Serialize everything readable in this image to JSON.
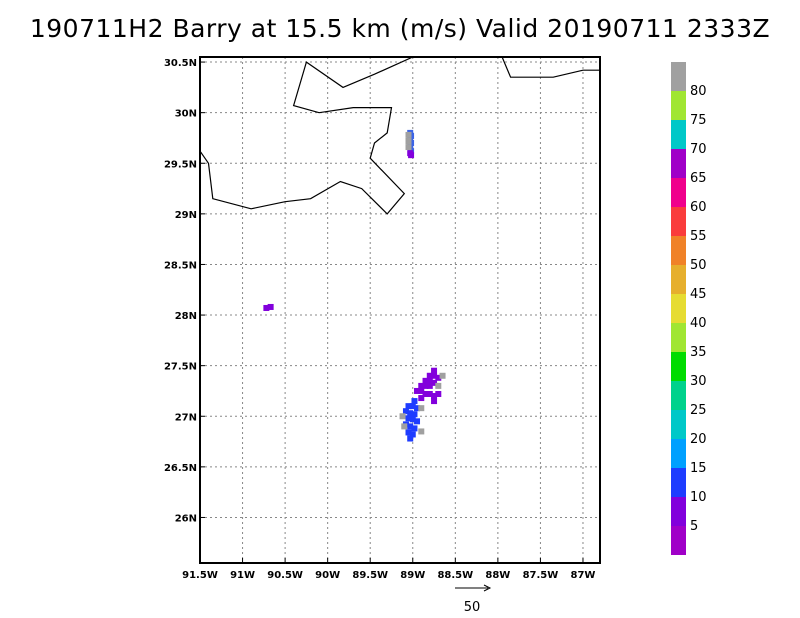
{
  "title": "190711H2 Barry at 15.5 km (m/s) Valid 20190711 2333Z",
  "map": {
    "lon_range": [
      -91.5,
      -86.8
    ],
    "lat_range": [
      25.55,
      30.55
    ],
    "lat_ticks": [
      {
        "value": 30.5,
        "label": "30.5N"
      },
      {
        "value": 30.0,
        "label": "30N"
      },
      {
        "value": 29.5,
        "label": "29.5N"
      },
      {
        "value": 29.0,
        "label": "29N"
      },
      {
        "value": 28.5,
        "label": "28.5N"
      },
      {
        "value": 28.0,
        "label": "28N"
      },
      {
        "value": 27.5,
        "label": "27.5N"
      },
      {
        "value": 27.0,
        "label": "27N"
      },
      {
        "value": 26.5,
        "label": "26.5N"
      },
      {
        "value": 26.0,
        "label": "26N"
      }
    ],
    "lon_ticks": [
      {
        "value": -91.5,
        "label": "91.5W"
      },
      {
        "value": -91.0,
        "label": "91W"
      },
      {
        "value": -90.5,
        "label": "90.5W"
      },
      {
        "value": -90.0,
        "label": "90W"
      },
      {
        "value": -89.5,
        "label": "89.5W"
      },
      {
        "value": -89.0,
        "label": "89W"
      },
      {
        "value": -88.5,
        "label": "88.5W"
      },
      {
        "value": -88.0,
        "label": "88W"
      },
      {
        "value": -87.5,
        "label": "87.5W"
      },
      {
        "value": -87.0,
        "label": "87W"
      }
    ],
    "coastlines": [
      [
        [
          -91.5,
          29.62
        ],
        [
          -91.4,
          29.5
        ],
        [
          -91.35,
          29.15
        ],
        [
          -90.9,
          29.05
        ],
        [
          -90.5,
          29.12
        ],
        [
          -90.2,
          29.15
        ],
        [
          -89.85,
          29.32
        ],
        [
          -89.6,
          29.25
        ],
        [
          -89.3,
          29.0
        ],
        [
          -89.1,
          29.2
        ],
        [
          -89.5,
          29.55
        ],
        [
          -89.45,
          29.7
        ],
        [
          -89.3,
          29.8
        ],
        [
          -89.25,
          30.05
        ],
        [
          -89.7,
          30.05
        ],
        [
          -90.1,
          30.0
        ],
        [
          -90.4,
          30.07
        ],
        [
          -90.25,
          30.5
        ],
        [
          -89.82,
          30.25
        ],
        [
          -89.45,
          30.38
        ],
        [
          -89.0,
          30.55
        ],
        [
          -88.5,
          30.55
        ],
        [
          -88.2,
          30.55
        ],
        [
          -88.05,
          30.55
        ]
      ],
      [
        [
          -87.95,
          30.55
        ],
        [
          -87.85,
          30.35
        ],
        [
          -87.35,
          30.35
        ],
        [
          -87.0,
          30.42
        ],
        [
          -86.8,
          30.42
        ]
      ]
    ],
    "colorbar": {
      "levels": [
        "80",
        "75",
        "70",
        "65",
        "60",
        "55",
        "50",
        "45",
        "40",
        "35",
        "30",
        "25",
        "20",
        "15",
        "10",
        "5"
      ],
      "colors": [
        "#a0a0a0",
        "#a0e632",
        "#00c8c8",
        "#a000c8",
        "#f0008c",
        "#fa3c3c",
        "#f08228",
        "#e6af2d",
        "#e6dc32",
        "#a0e632",
        "#00dc00",
        "#00d28c",
        "#00c8c8",
        "#00a0ff",
        "#1e3cff",
        "#8200dc",
        "#a000c8"
      ]
    },
    "wind_echoes": [
      {
        "name": "north-echo",
        "color": "#3c64e6",
        "cells": [
          [
            -89.03,
            29.8
          ],
          [
            -89.02,
            29.77
          ],
          [
            -89.03,
            29.73
          ],
          [
            -89.02,
            29.7
          ],
          [
            -89.03,
            29.66
          ],
          [
            -89.02,
            29.62
          ]
        ]
      },
      {
        "name": "north-echo-violet",
        "color": "#8200dc",
        "cells": [
          [
            -89.03,
            29.6
          ],
          [
            -89.02,
            29.58
          ]
        ]
      },
      {
        "name": "north-echo-gray",
        "color": "#a0a0a0",
        "cells": [
          [
            -89.05,
            29.78
          ],
          [
            -89.05,
            29.72
          ],
          [
            -89.05,
            29.66
          ]
        ]
      },
      {
        "name": "west-echo",
        "color": "#8200dc",
        "cells": [
          [
            -90.72,
            28.07
          ],
          [
            -90.67,
            28.08
          ]
        ]
      },
      {
        "name": "south-echo-violet",
        "color": "#8200dc",
        "cells": [
          [
            -88.75,
            27.45
          ],
          [
            -88.8,
            27.4
          ],
          [
            -88.75,
            27.4
          ],
          [
            -88.7,
            27.38
          ],
          [
            -88.85,
            27.35
          ],
          [
            -88.8,
            27.35
          ],
          [
            -88.75,
            27.33
          ],
          [
            -88.9,
            27.3
          ],
          [
            -88.85,
            27.3
          ],
          [
            -88.8,
            27.3
          ],
          [
            -88.95,
            27.25
          ],
          [
            -88.9,
            27.25
          ],
          [
            -88.85,
            27.22
          ],
          [
            -88.8,
            27.22
          ],
          [
            -88.75,
            27.2
          ],
          [
            -88.7,
            27.22
          ],
          [
            -88.9,
            27.18
          ],
          [
            -88.75,
            27.15
          ]
        ]
      },
      {
        "name": "south-echo-blue",
        "color": "#1e3cff",
        "cells": [
          [
            -88.98,
            27.15
          ],
          [
            -89.05,
            27.1
          ],
          [
            -89.0,
            27.1
          ],
          [
            -88.95,
            27.08
          ],
          [
            -89.08,
            27.05
          ],
          [
            -89.03,
            27.03
          ],
          [
            -88.98,
            27.02
          ],
          [
            -89.05,
            26.98
          ],
          [
            -89.0,
            26.97
          ],
          [
            -88.95,
            26.95
          ],
          [
            -89.08,
            26.92
          ],
          [
            -89.03,
            26.9
          ],
          [
            -88.98,
            26.88
          ],
          [
            -89.05,
            26.84
          ],
          [
            -89.0,
            26.82
          ],
          [
            -89.03,
            26.78
          ]
        ]
      },
      {
        "name": "south-echo-gray",
        "color": "#a0a0a0",
        "cells": [
          [
            -88.7,
            27.3
          ],
          [
            -88.65,
            27.4
          ],
          [
            -89.1,
            26.9
          ],
          [
            -88.9,
            26.85
          ],
          [
            -88.9,
            27.08
          ],
          [
            -89.12,
            27.0
          ]
        ]
      }
    ]
  },
  "vector_reference": {
    "label": "50"
  }
}
